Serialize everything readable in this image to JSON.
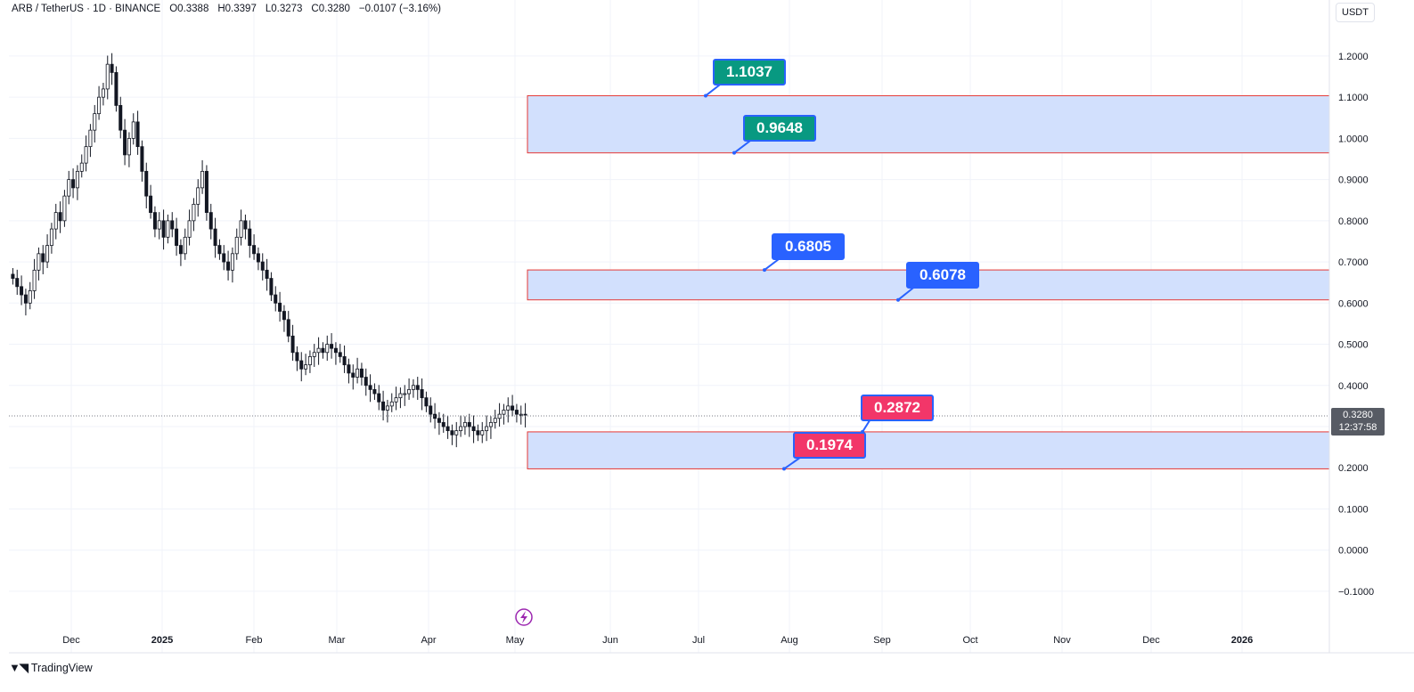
{
  "header": {
    "symbol": "ARB / TetherUS · 1D · BINANCE",
    "open": "O0.3388",
    "high": "H0.3397",
    "low": "L0.3273",
    "close": "C0.3280",
    "change": "−0.0107 (−3.16%)"
  },
  "currency": "USDT",
  "brand": "TradingView",
  "current_price": {
    "value": "0.3280",
    "countdown": "12:37:58"
  },
  "colors": {
    "zone_fill": "#d2e0fd",
    "zone_border": "#e53935",
    "label_green": "#089981",
    "label_blue": "#2962ff",
    "label_red": "#f23669",
    "candle_up": "#ffffff",
    "candle_down": "#131722"
  },
  "icons": [
    "lightning-icon",
    "tradingview-logo-icon"
  ],
  "chart_data": {
    "type": "candlestick",
    "ylim": [
      -0.13,
      1.27
    ],
    "y_ticks": [
      "1.2000",
      "1.1000",
      "1.0000",
      "0.9000",
      "0.8000",
      "0.7000",
      "0.6000",
      "0.5000",
      "0.4000",
      "0.3000",
      "0.2000",
      "0.1000",
      "0.0000",
      "−0.1000"
    ],
    "x_ticks": [
      "Dec",
      "2025",
      "Feb",
      "Mar",
      "Apr",
      "May",
      "Jun",
      "Jul",
      "Aug",
      "Sep",
      "Oct",
      "Nov",
      "Dec",
      "2026"
    ],
    "close_series": [
      0.66,
      0.64,
      0.62,
      0.6,
      0.63,
      0.68,
      0.72,
      0.7,
      0.74,
      0.78,
      0.82,
      0.8,
      0.86,
      0.9,
      0.88,
      0.92,
      0.94,
      0.98,
      1.02,
      1.06,
      1.1,
      1.12,
      1.18,
      1.16,
      1.08,
      1.02,
      0.96,
      1.0,
      1.04,
      0.98,
      0.92,
      0.86,
      0.82,
      0.78,
      0.8,
      0.76,
      0.8,
      0.78,
      0.74,
      0.72,
      0.76,
      0.8,
      0.84,
      0.88,
      0.92,
      0.82,
      0.78,
      0.74,
      0.72,
      0.7,
      0.68,
      0.72,
      0.76,
      0.8,
      0.78,
      0.74,
      0.72,
      0.7,
      0.68,
      0.66,
      0.62,
      0.6,
      0.58,
      0.56,
      0.52,
      0.48,
      0.46,
      0.44,
      0.45,
      0.47,
      0.48,
      0.49,
      0.48,
      0.5,
      0.49,
      0.48,
      0.47,
      0.45,
      0.43,
      0.42,
      0.44,
      0.42,
      0.4,
      0.39,
      0.38,
      0.36,
      0.34,
      0.35,
      0.36,
      0.37,
      0.38,
      0.38,
      0.39,
      0.4,
      0.39,
      0.37,
      0.35,
      0.33,
      0.32,
      0.31,
      0.3,
      0.29,
      0.28,
      0.29,
      0.3,
      0.31,
      0.3,
      0.29,
      0.28,
      0.29,
      0.3,
      0.31,
      0.32,
      0.33,
      0.34,
      0.35,
      0.34,
      0.33,
      0.33,
      0.328
    ],
    "zones": [
      {
        "top": 1.1037,
        "bottom": 0.9648,
        "start": "Jun"
      },
      {
        "top": 0.6805,
        "bottom": 0.6078,
        "start": "Jun"
      },
      {
        "top": 0.2872,
        "bottom": 0.1974,
        "start": "Jun"
      }
    ],
    "price_labels": [
      {
        "text": "1.1037",
        "value": 1.1037,
        "color": "green"
      },
      {
        "text": "0.9648",
        "value": 0.9648,
        "color": "green"
      },
      {
        "text": "0.6805",
        "value": 0.6805,
        "color": "blue"
      },
      {
        "text": "0.6078",
        "value": 0.6078,
        "color": "blue"
      },
      {
        "text": "0.2872",
        "value": 0.2872,
        "color": "red"
      },
      {
        "text": "0.1974",
        "value": 0.1974,
        "color": "red"
      }
    ],
    "current_price_line": 0.328,
    "grid": true
  }
}
